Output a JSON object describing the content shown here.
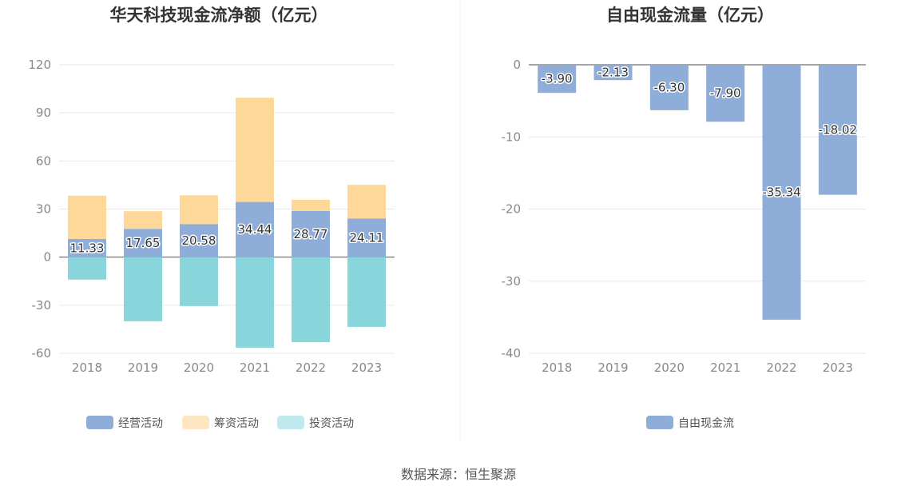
{
  "source": "数据来源：恒生聚源",
  "chart_data": [
    {
      "type": "bar",
      "stacked": true,
      "title": "华天科技现金流净额（亿元）",
      "categories": [
        "2018",
        "2019",
        "2020",
        "2021",
        "2022",
        "2023"
      ],
      "ylim": [
        -60,
        120
      ],
      "yticks": [
        "120",
        "90",
        "60",
        "30",
        "0",
        "-30",
        "-60"
      ],
      "grid": true,
      "legend_position": "bottom",
      "series": [
        {
          "name": "经营活动",
          "color": "#8eadd9",
          "values": [
            11.33,
            17.65,
            20.58,
            34.44,
            28.77,
            24.11
          ],
          "labels": [
            "11.33",
            "17.65",
            "20.58",
            "34.44",
            "28.77",
            "24.11"
          ]
        },
        {
          "name": "筹资活动",
          "color": "#fdd898",
          "values": [
            27.0,
            11.0,
            18.0,
            65.0,
            7.0,
            21.0
          ]
        },
        {
          "name": "投资活动",
          "color": "#88d6db",
          "values": [
            -14.0,
            -40.0,
            -30.5,
            -56.5,
            -53.0,
            -43.5
          ]
        }
      ],
      "legend_colors": [
        "#8eadd9",
        "#fde6c1",
        "#bfe9ec"
      ]
    },
    {
      "type": "bar",
      "title": "自由现金流量（亿元）",
      "categories": [
        "2018",
        "2019",
        "2020",
        "2021",
        "2022",
        "2023"
      ],
      "ylim": [
        -40,
        0
      ],
      "yticks": [
        "0",
        "-10",
        "-20",
        "-30",
        "-40"
      ],
      "grid": true,
      "legend_position": "bottom",
      "series": [
        {
          "name": "自由现金流",
          "color": "#8eadd9",
          "values": [
            -3.9,
            -2.13,
            -6.3,
            -7.9,
            -35.34,
            -18.02
          ],
          "labels": [
            "-3.90",
            "-2.13",
            "-6.30",
            "-7.90",
            "-35.34",
            "-18.02"
          ]
        }
      ]
    }
  ]
}
